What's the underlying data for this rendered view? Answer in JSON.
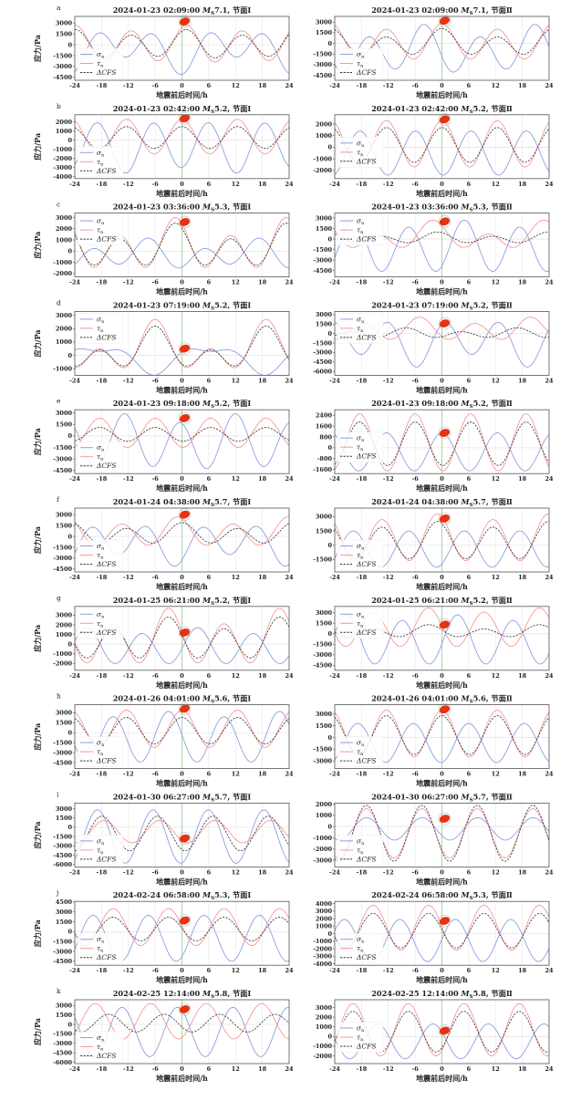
{
  "figure": {
    "ylabel": "应力/Pa",
    "xlabel": "地震前后时间/h",
    "legend": {
      "sigma": "σ",
      "sigma_sub": "n",
      "tau": "τ",
      "tau_sub": "n",
      "cfs": "ΔCFS"
    },
    "colors": {
      "sigma": "#8f9ee0",
      "tau": "#f59a9a",
      "cfs": "#333333",
      "event_line": "#9fd39f",
      "beachball": "#e63312"
    }
  },
  "chart_data": {
    "type": "line",
    "x_range": [
      -24,
      24
    ],
    "x_ticks": [
      -24,
      -18,
      -12,
      -6,
      0,
      6,
      12,
      18,
      24
    ],
    "series_model": "value = mean + a12*cos(2π(t−t12)/12.42) + a24*cos(2π(t−t24)/24.84), approximate fit; params [mean, a12, t12, a24, t24]",
    "panels": [
      {
        "letter": "a",
        "date": "2024-01-23 02:09:00",
        "mag": "7.1",
        "plane": "节面Ⅰ",
        "yticks": [
          -4500,
          -3000,
          -1500,
          0,
          1500,
          3000
        ],
        "ylim": [
          -4900,
          3900
        ],
        "legend": "bottom",
        "ball": 3200,
        "sigma": [
          -700,
          2200,
          6,
          1200,
          12
        ],
        "tau": [
          0,
          2300,
          1,
          400,
          0
        ],
        "cfs": [
          0,
          1700,
          1,
          400,
          0
        ]
      },
      {
        "letter": "",
        "date": "2024-01-23 02:09:00",
        "mag": "7.1",
        "plane": "节面Ⅱ",
        "yticks": [
          -4500,
          -3000,
          -1500,
          0,
          1500,
          3000
        ],
        "ylim": [
          -5200,
          3800
        ],
        "legend": "bottom",
        "ball": 3200,
        "sigma": [
          -1000,
          2800,
          8.5,
          900,
          20
        ],
        "tau": [
          100,
          2300,
          0,
          400,
          0
        ],
        "cfs": [
          0,
          1500,
          0,
          600,
          0
        ]
      },
      {
        "letter": "b",
        "date": "2024-01-23 02:42:00",
        "mag": "5.2",
        "plane": "节面Ⅰ",
        "yticks": [
          -4000,
          -3000,
          -2000,
          -1000,
          0,
          1000,
          2000
        ],
        "ylim": [
          -4200,
          2800
        ],
        "legend": "bottom",
        "ball": 2400,
        "sigma": [
          -700,
          2600,
          6,
          300,
          0
        ],
        "tau": [
          400,
          1900,
          0,
          0,
          0
        ],
        "cfs": [
          300,
          1200,
          0,
          0,
          0
        ]
      },
      {
        "letter": "",
        "date": "2024-01-23 02:42:00",
        "mag": "5.2",
        "plane": "节面Ⅱ",
        "yticks": [
          -2000,
          -1000,
          0,
          1000,
          2000
        ],
        "ylim": [
          -2700,
          2800
        ],
        "legend": "middle",
        "ball": 2400,
        "sigma": [
          -500,
          1900,
          6.5,
          0,
          0
        ],
        "tau": [
          300,
          2000,
          0,
          0,
          0
        ],
        "cfs": [
          200,
          1500,
          0,
          0,
          0
        ]
      },
      {
        "letter": "c",
        "date": "2024-01-23 03:36:00",
        "mag": "5.3",
        "plane": "节面Ⅰ",
        "yticks": [
          -2000,
          -1000,
          0,
          1000,
          2000,
          3000
        ],
        "ylim": [
          -2300,
          3400
        ],
        "legend": "top",
        "ball": 2600,
        "sigma": [
          -300,
          1000,
          5,
          500,
          16
        ],
        "tau": [
          400,
          1800,
          -1.5,
          800,
          -1.5
        ],
        "cfs": [
          300,
          1500,
          -1.5,
          700,
          -1.5
        ]
      },
      {
        "letter": "",
        "date": "2024-01-23 03:36:00",
        "mag": "5.3",
        "plane": "节面Ⅱ",
        "yticks": [
          -4500,
          -3000,
          -1500,
          0,
          1500,
          3000
        ],
        "ylim": [
          -5400,
          3700
        ],
        "legend": "top",
        "ball": 2500,
        "sigma": [
          -1200,
          3400,
          5,
          500,
          5
        ],
        "tau": [
          300,
          1400,
          -2,
          1000,
          -2
        ],
        "cfs": [
          100,
          600,
          -1,
          300,
          -1
        ]
      },
      {
        "letter": "d",
        "date": "2024-01-23 07:19:00",
        "mag": "5.2",
        "plane": "节面Ⅰ",
        "yticks": [
          -1000,
          0,
          1000,
          2000,
          3000
        ],
        "ylim": [
          -1500,
          3300
        ],
        "legend": "top",
        "ball": 500,
        "sigma": [
          -200,
          400,
          0,
          900,
          6
        ],
        "tau": [
          400,
          1200,
          -6,
          1100,
          -6
        ],
        "cfs": [
          300,
          1000,
          -6,
          900,
          -6
        ]
      },
      {
        "letter": "",
        "date": "2024-01-23 07:19:00",
        "mag": "5.2",
        "plane": "节面Ⅱ",
        "yticks": [
          -6000,
          -4500,
          -3000,
          -1500,
          0,
          1500,
          3000
        ],
        "ylim": [
          -6600,
          3500
        ],
        "legend": "top",
        "ball": 1600,
        "sigma": [
          -1300,
          3000,
          0.5,
          1000,
          -18
        ],
        "tau": [
          600,
          1500,
          -5,
          500,
          -5
        ],
        "cfs": [
          0,
          600,
          -8,
          300,
          -8
        ]
      },
      {
        "letter": "e",
        "date": "2024-01-23 09:18:00",
        "mag": "5.2",
        "plane": "节面Ⅰ",
        "yticks": [
          -4500,
          -3000,
          -1500,
          0,
          1500,
          3000
        ],
        "ylim": [
          -4900,
          3400
        ],
        "legend": "bottom",
        "ball": 2300,
        "sigma": [
          -900,
          3200,
          -0.5,
          600,
          -12
        ],
        "tau": [
          400,
          1900,
          -6,
          0,
          0
        ],
        "cfs": [
          200,
          900,
          -6,
          0,
          0
        ]
      },
      {
        "letter": "",
        "date": "2024-01-23 09:18:00",
        "mag": "5.2",
        "plane": "节面Ⅱ",
        "yticks": [
          -1600,
          -800,
          0,
          800,
          1600,
          2400
        ],
        "ylim": [
          -1900,
          2800
        ],
        "legend": "middle",
        "ball": 1100,
        "sigma": [
          -300,
          1400,
          0,
          0,
          0
        ],
        "tau": [
          400,
          2100,
          -6,
          0,
          0
        ],
        "cfs": [
          300,
          1600,
          -6,
          0,
          0
        ]
      },
      {
        "letter": "f",
        "date": "2024-01-24 04:38:00",
        "mag": "5.7",
        "plane": "节面Ⅰ",
        "yticks": [
          -4500,
          -3000,
          -1500,
          0,
          1500,
          3000
        ],
        "ylim": [
          -4900,
          3900
        ],
        "legend": "bottom",
        "ball": 3000,
        "sigma": [
          -1000,
          2300,
          4.5,
          800,
          11
        ],
        "tau": [
          500,
          1700,
          -1,
          500,
          -1
        ],
        "cfs": [
          300,
          1200,
          0,
          400,
          0
        ]
      },
      {
        "letter": "",
        "date": "2024-01-24 04:38:00",
        "mag": "5.7",
        "plane": "节面Ⅱ",
        "yticks": [
          -1500,
          0,
          1500,
          3000
        ],
        "ylim": [
          -2800,
          3900
        ],
        "legend": "bottom",
        "ball": 2800,
        "sigma": [
          -400,
          1900,
          5,
          0,
          0
        ],
        "tau": [
          700,
          2300,
          -1,
          300,
          -1
        ],
        "cfs": [
          400,
          1800,
          -1,
          300,
          -1
        ]
      },
      {
        "letter": "g",
        "date": "2024-01-25 06:21:00",
        "mag": "5.2",
        "plane": "节面Ⅰ",
        "yticks": [
          -2000,
          -1000,
          0,
          1000,
          2000,
          3000
        ],
        "ylim": [
          -2700,
          3900
        ],
        "legend": "top",
        "ball": 1200,
        "sigma": [
          -300,
          1700,
          3.5,
          300,
          3.5
        ],
        "tau": [
          500,
          2400,
          -3,
          800,
          -3
        ],
        "cfs": [
          400,
          1800,
          -3,
          600,
          -3
        ]
      },
      {
        "letter": "",
        "date": "2024-01-25 06:21:00",
        "mag": "5.2",
        "plane": "节面Ⅱ",
        "yticks": [
          -4500,
          -3000,
          -1500,
          0,
          1500,
          3000
        ],
        "ylim": [
          -5200,
          3900
        ],
        "legend": "top",
        "ball": 1300,
        "sigma": [
          -1000,
          3300,
          3.5,
          400,
          3.5
        ],
        "tau": [
          800,
          2600,
          -3,
          300,
          -3
        ],
        "cfs": [
          300,
          700,
          -3,
          300,
          -3
        ]
      },
      {
        "letter": "h",
        "date": "2024-01-26 04:01:00",
        "mag": "5.6",
        "plane": "节面Ⅰ",
        "yticks": [
          -4500,
          -3000,
          -1500,
          0,
          1500,
          3000
        ],
        "ylim": [
          -5400,
          4200
        ],
        "legend": "bottom",
        "ball": 3600,
        "sigma": [
          -800,
          3600,
          -3,
          400,
          -3
        ],
        "tau": [
          600,
          2800,
          0,
          0,
          0
        ],
        "cfs": [
          300,
          2000,
          0,
          0,
          0
        ]
      },
      {
        "letter": "",
        "date": "2024-01-26 04:01:00",
        "mag": "5.6",
        "plane": "节面Ⅱ",
        "yticks": [
          -3000,
          -1500,
          0,
          1500,
          3000
        ],
        "ylim": [
          -4000,
          4200
        ],
        "legend": "bottom",
        "ball": 3600,
        "sigma": [
          -700,
          2500,
          6,
          0,
          0
        ],
        "tau": [
          500,
          3000,
          0,
          0,
          0
        ],
        "cfs": [
          300,
          2500,
          0,
          0,
          0
        ]
      },
      {
        "letter": "i",
        "date": "2024-01-30 06:27:00",
        "mag": "5.7",
        "plane": "节面Ⅰ",
        "yticks": [
          -6000,
          -4500,
          -3000,
          -1500,
          0,
          1500,
          3000
        ],
        "ylim": [
          -6400,
          3900
        ],
        "legend": "bottom",
        "ball": -1800,
        "sigma": [
          -1500,
          4300,
          -6.5,
          0,
          0
        ],
        "tau": [
          -700,
          1800,
          -5,
          0,
          0
        ],
        "cfs": [
          -1000,
          2800,
          -5.5,
          0,
          0
        ]
      },
      {
        "letter": "",
        "date": "2024-01-30 06:27:00",
        "mag": "5.7",
        "plane": "节面Ⅱ",
        "yticks": [
          -3000,
          -2000,
          -1000,
          0,
          1000,
          2000
        ],
        "ylim": [
          -3600,
          2100
        ],
        "legend": "bottom",
        "ball": 700,
        "sigma": [
          -200,
          1000,
          8,
          0,
          0
        ],
        "tau": [
          -600,
          2200,
          -4.5,
          0,
          0
        ],
        "cfs": [
          -600,
          2500,
          -4.5,
          0,
          0
        ]
      },
      {
        "letter": "j",
        "date": "2024-02-24 06:58:00",
        "mag": "5.3",
        "plane": "节面Ⅰ",
        "yticks": [
          -4500,
          -3000,
          -1500,
          0,
          1500,
          3000,
          4500
        ],
        "ylim": [
          -5100,
          4600
        ],
        "legend": "bottom",
        "ball": 1700,
        "sigma": [
          -1000,
          3500,
          -7.5,
          0,
          0
        ],
        "tau": [
          700,
          2800,
          -3,
          0,
          0
        ],
        "cfs": [
          400,
          1800,
          -3,
          0,
          0
        ]
      },
      {
        "letter": "",
        "date": "2024-02-24 06:58:00",
        "mag": "5.3",
        "plane": "节面Ⅱ",
        "yticks": [
          -4000,
          -3000,
          -2000,
          -1000,
          0,
          1000,
          2000,
          3000,
          4000
        ],
        "ylim": [
          -4200,
          4300
        ],
        "legend": "bottom",
        "ball": 1700,
        "sigma": [
          -900,
          2800,
          3,
          0,
          0
        ],
        "tau": [
          800,
          3000,
          -3,
          0,
          0
        ],
        "cfs": [
          400,
          2300,
          -3,
          0,
          0
        ]
      },
      {
        "letter": "k",
        "date": "2024-02-25 12:14:00",
        "mag": "5.8",
        "plane": "节面Ⅰ",
        "yticks": [
          -6000,
          -4500,
          -3000,
          -1500,
          0,
          1500,
          3000
        ],
        "ylim": [
          -6200,
          3900
        ],
        "legend": "bottom",
        "ball": 2400,
        "sigma": [
          -1200,
          3900,
          -1,
          0,
          0
        ],
        "tau": [
          500,
          2800,
          -7,
          0,
          0
        ],
        "cfs": [
          200,
          1400,
          -4,
          0,
          0
        ]
      },
      {
        "letter": "",
        "date": "2024-02-25 12:14:00",
        "mag": "5.8",
        "plane": "节面Ⅱ",
        "yticks": [
          -2000,
          -1000,
          0,
          1000,
          2000,
          3000
        ],
        "ylim": [
          -2800,
          3800
        ],
        "legend": "middle",
        "ball": 600,
        "sigma": [
          -500,
          1800,
          -2,
          0,
          0
        ],
        "tau": [
          700,
          2700,
          -7.5,
          0,
          0
        ],
        "cfs": [
          500,
          2100,
          -7.5,
          0,
          0
        ]
      }
    ]
  }
}
